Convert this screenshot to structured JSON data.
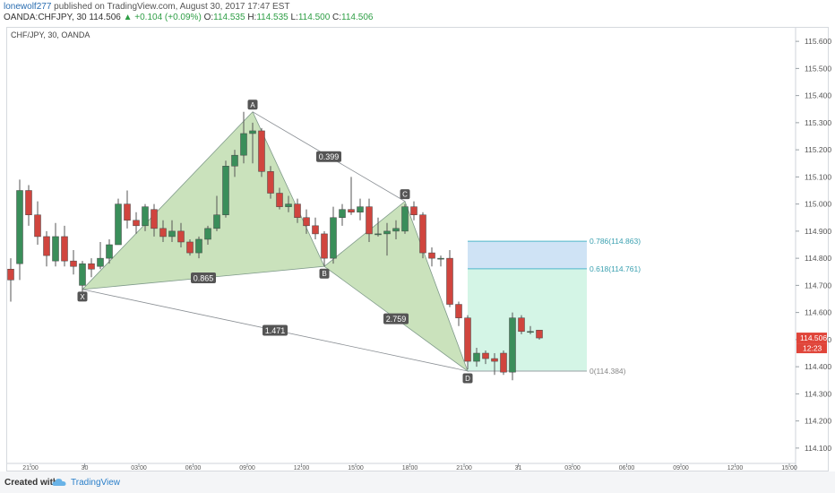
{
  "header": {
    "user": "lonewolf277",
    "published_text": "published on TradingView.com, August 30, 2017 17:47 EST",
    "symbol": "OANDA:CHFJPY, 30",
    "last": "114.506",
    "change": "+0.104 (+0.09%)",
    "o_label": "O:",
    "o": "114.535",
    "h_label": "H:",
    "h": "114.535",
    "l_label": "L:",
    "l": "114.500",
    "c_label": "C:",
    "c": "114.506"
  },
  "pair_title": "CHF/JPY, 30, OANDA",
  "footer": {
    "created_with": "Created with",
    "brand": "TradingView"
  },
  "colors": {
    "bull": "#3a8e5a",
    "bear": "#d0453e",
    "pattern_fill": "#b8d8a5",
    "pattern_stroke": "#7f9a8a",
    "fib_blue": "#cfe3f5",
    "fib_green": "#d4f5e6",
    "fib_line": "#4fb8c9",
    "price_tag": "#e0453a"
  },
  "chart_data": {
    "type": "candlestick",
    "title": "CHF/JPY, 30, OANDA",
    "ylim": [
      114.05,
      115.65
    ],
    "y_ticks": [
      "114.100",
      "114.200",
      "114.300",
      "114.400",
      "114.500",
      "114.600",
      "114.700",
      "114.800",
      "114.900",
      "115.000",
      "115.100",
      "115.200",
      "115.300",
      "115.400",
      "115.500",
      "115.600"
    ],
    "x_ticks": [
      "21:00",
      "30",
      "03:00",
      "06:00",
      "09:00",
      "12:00",
      "15:00",
      "18:00",
      "21:00",
      "31",
      "03:00",
      "06:00",
      "09:00",
      "12:00",
      "15:00"
    ],
    "last_price_label": "114.506",
    "countdown_label": "12:23",
    "candles": [
      {
        "o": 114.76,
        "h": 114.8,
        "l": 114.64,
        "c": 114.72
      },
      {
        "o": 114.78,
        "h": 115.09,
        "l": 114.72,
        "c": 115.05
      },
      {
        "o": 115.05,
        "h": 115.07,
        "l": 114.92,
        "c": 114.96
      },
      {
        "o": 114.96,
        "h": 115.01,
        "l": 114.85,
        "c": 114.88
      },
      {
        "o": 114.88,
        "h": 114.9,
        "l": 114.77,
        "c": 114.81
      },
      {
        "o": 114.79,
        "h": 114.93,
        "l": 114.77,
        "c": 114.88
      },
      {
        "o": 114.88,
        "h": 114.92,
        "l": 114.77,
        "c": 114.79
      },
      {
        "o": 114.79,
        "h": 114.83,
        "l": 114.74,
        "c": 114.77
      },
      {
        "o": 114.7,
        "h": 114.79,
        "l": 114.66,
        "c": 114.78
      },
      {
        "o": 114.78,
        "h": 114.8,
        "l": 114.73,
        "c": 114.76
      },
      {
        "o": 114.77,
        "h": 114.86,
        "l": 114.76,
        "c": 114.8
      },
      {
        "o": 114.8,
        "h": 114.87,
        "l": 114.78,
        "c": 114.85
      },
      {
        "o": 114.85,
        "h": 115.02,
        "l": 114.85,
        "c": 115.0
      },
      {
        "o": 115.0,
        "h": 115.05,
        "l": 114.91,
        "c": 114.94
      },
      {
        "o": 114.94,
        "h": 114.97,
        "l": 114.89,
        "c": 114.92
      },
      {
        "o": 114.92,
        "h": 115.0,
        "l": 114.9,
        "c": 114.99
      },
      {
        "o": 114.98,
        "h": 115.0,
        "l": 114.88,
        "c": 114.91
      },
      {
        "o": 114.91,
        "h": 114.94,
        "l": 114.86,
        "c": 114.88
      },
      {
        "o": 114.88,
        "h": 114.94,
        "l": 114.86,
        "c": 114.9
      },
      {
        "o": 114.9,
        "h": 114.93,
        "l": 114.84,
        "c": 114.86
      },
      {
        "o": 114.86,
        "h": 114.87,
        "l": 114.81,
        "c": 114.82
      },
      {
        "o": 114.82,
        "h": 114.88,
        "l": 114.8,
        "c": 114.87
      },
      {
        "o": 114.87,
        "h": 114.92,
        "l": 114.85,
        "c": 114.91
      },
      {
        "o": 114.91,
        "h": 115.03,
        "l": 114.9,
        "c": 114.96
      },
      {
        "o": 114.96,
        "h": 115.16,
        "l": 114.95,
        "c": 115.14
      },
      {
        "o": 115.14,
        "h": 115.2,
        "l": 115.1,
        "c": 115.18
      },
      {
        "o": 115.18,
        "h": 115.34,
        "l": 115.15,
        "c": 115.26
      },
      {
        "o": 115.26,
        "h": 115.3,
        "l": 115.15,
        "c": 115.27
      },
      {
        "o": 115.27,
        "h": 115.28,
        "l": 115.1,
        "c": 115.12
      },
      {
        "o": 115.12,
        "h": 115.14,
        "l": 115.02,
        "c": 115.04
      },
      {
        "o": 115.04,
        "h": 115.06,
        "l": 114.98,
        "c": 114.99
      },
      {
        "o": 114.99,
        "h": 115.03,
        "l": 114.97,
        "c": 115.0
      },
      {
        "o": 115.0,
        "h": 115.02,
        "l": 114.93,
        "c": 114.95
      },
      {
        "o": 114.95,
        "h": 114.98,
        "l": 114.89,
        "c": 114.92
      },
      {
        "o": 114.92,
        "h": 114.95,
        "l": 114.87,
        "c": 114.89
      },
      {
        "o": 114.89,
        "h": 114.9,
        "l": 114.77,
        "c": 114.8
      },
      {
        "o": 114.8,
        "h": 114.99,
        "l": 114.78,
        "c": 114.95
      },
      {
        "o": 114.95,
        "h": 115.0,
        "l": 114.92,
        "c": 114.98
      },
      {
        "o": 114.98,
        "h": 115.1,
        "l": 114.96,
        "c": 114.97
      },
      {
        "o": 114.97,
        "h": 115.02,
        "l": 114.94,
        "c": 114.99
      },
      {
        "o": 114.99,
        "h": 115.02,
        "l": 114.86,
        "c": 114.89
      },
      {
        "o": 114.89,
        "h": 114.95,
        "l": 114.88,
        "c": 114.89
      },
      {
        "o": 114.89,
        "h": 114.93,
        "l": 114.81,
        "c": 114.9
      },
      {
        "o": 114.9,
        "h": 114.94,
        "l": 114.87,
        "c": 114.91
      },
      {
        "o": 114.9,
        "h": 115.0,
        "l": 114.89,
        "c": 114.99
      },
      {
        "o": 114.99,
        "h": 115.01,
        "l": 114.94,
        "c": 114.96
      },
      {
        "o": 114.96,
        "h": 114.97,
        "l": 114.8,
        "c": 114.82
      },
      {
        "o": 114.82,
        "h": 114.84,
        "l": 114.77,
        "c": 114.8
      },
      {
        "o": 114.8,
        "h": 114.81,
        "l": 114.77,
        "c": 114.8
      },
      {
        "o": 114.8,
        "h": 114.83,
        "l": 114.62,
        "c": 114.63
      },
      {
        "o": 114.63,
        "h": 114.64,
        "l": 114.55,
        "c": 114.58
      },
      {
        "o": 114.58,
        "h": 114.59,
        "l": 114.39,
        "c": 114.42
      },
      {
        "o": 114.42,
        "h": 114.47,
        "l": 114.4,
        "c": 114.45
      },
      {
        "o": 114.45,
        "h": 114.46,
        "l": 114.41,
        "c": 114.43
      },
      {
        "o": 114.43,
        "h": 114.45,
        "l": 114.37,
        "c": 114.42
      },
      {
        "o": 114.45,
        "h": 114.46,
        "l": 114.37,
        "c": 114.38
      },
      {
        "o": 114.38,
        "h": 114.6,
        "l": 114.35,
        "c": 114.58
      },
      {
        "o": 114.58,
        "h": 114.59,
        "l": 114.52,
        "c": 114.53
      },
      {
        "o": 114.53,
        "h": 114.55,
        "l": 114.52,
        "c": 114.53
      },
      {
        "o": 114.535,
        "h": 114.535,
        "l": 114.5,
        "c": 114.506
      }
    ],
    "pattern_points": [
      {
        "label": "X",
        "idx": 8,
        "price": 114.685
      },
      {
        "label": "A",
        "idx": 27,
        "price": 115.34
      },
      {
        "label": "B",
        "idx": 35,
        "price": 114.77
      },
      {
        "label": "C",
        "idx": 44,
        "price": 115.01
      },
      {
        "label": "D",
        "idx": 51,
        "price": 114.384
      }
    ],
    "ratio_labels": [
      {
        "text": "0.865",
        "between": [
          "X",
          "B"
        ]
      },
      {
        "text": "0.399",
        "between": [
          "A",
          "C"
        ]
      },
      {
        "text": "2.759",
        "between": [
          "B",
          "D"
        ]
      },
      {
        "text": "1.471",
        "between": [
          "X",
          "D"
        ]
      }
    ],
    "fib_levels": [
      {
        "label": "0.786(114.863)",
        "price": 114.863
      },
      {
        "label": "0.618(114.761)",
        "price": 114.761
      },
      {
        "label": "0(114.384)",
        "price": 114.384
      }
    ]
  }
}
